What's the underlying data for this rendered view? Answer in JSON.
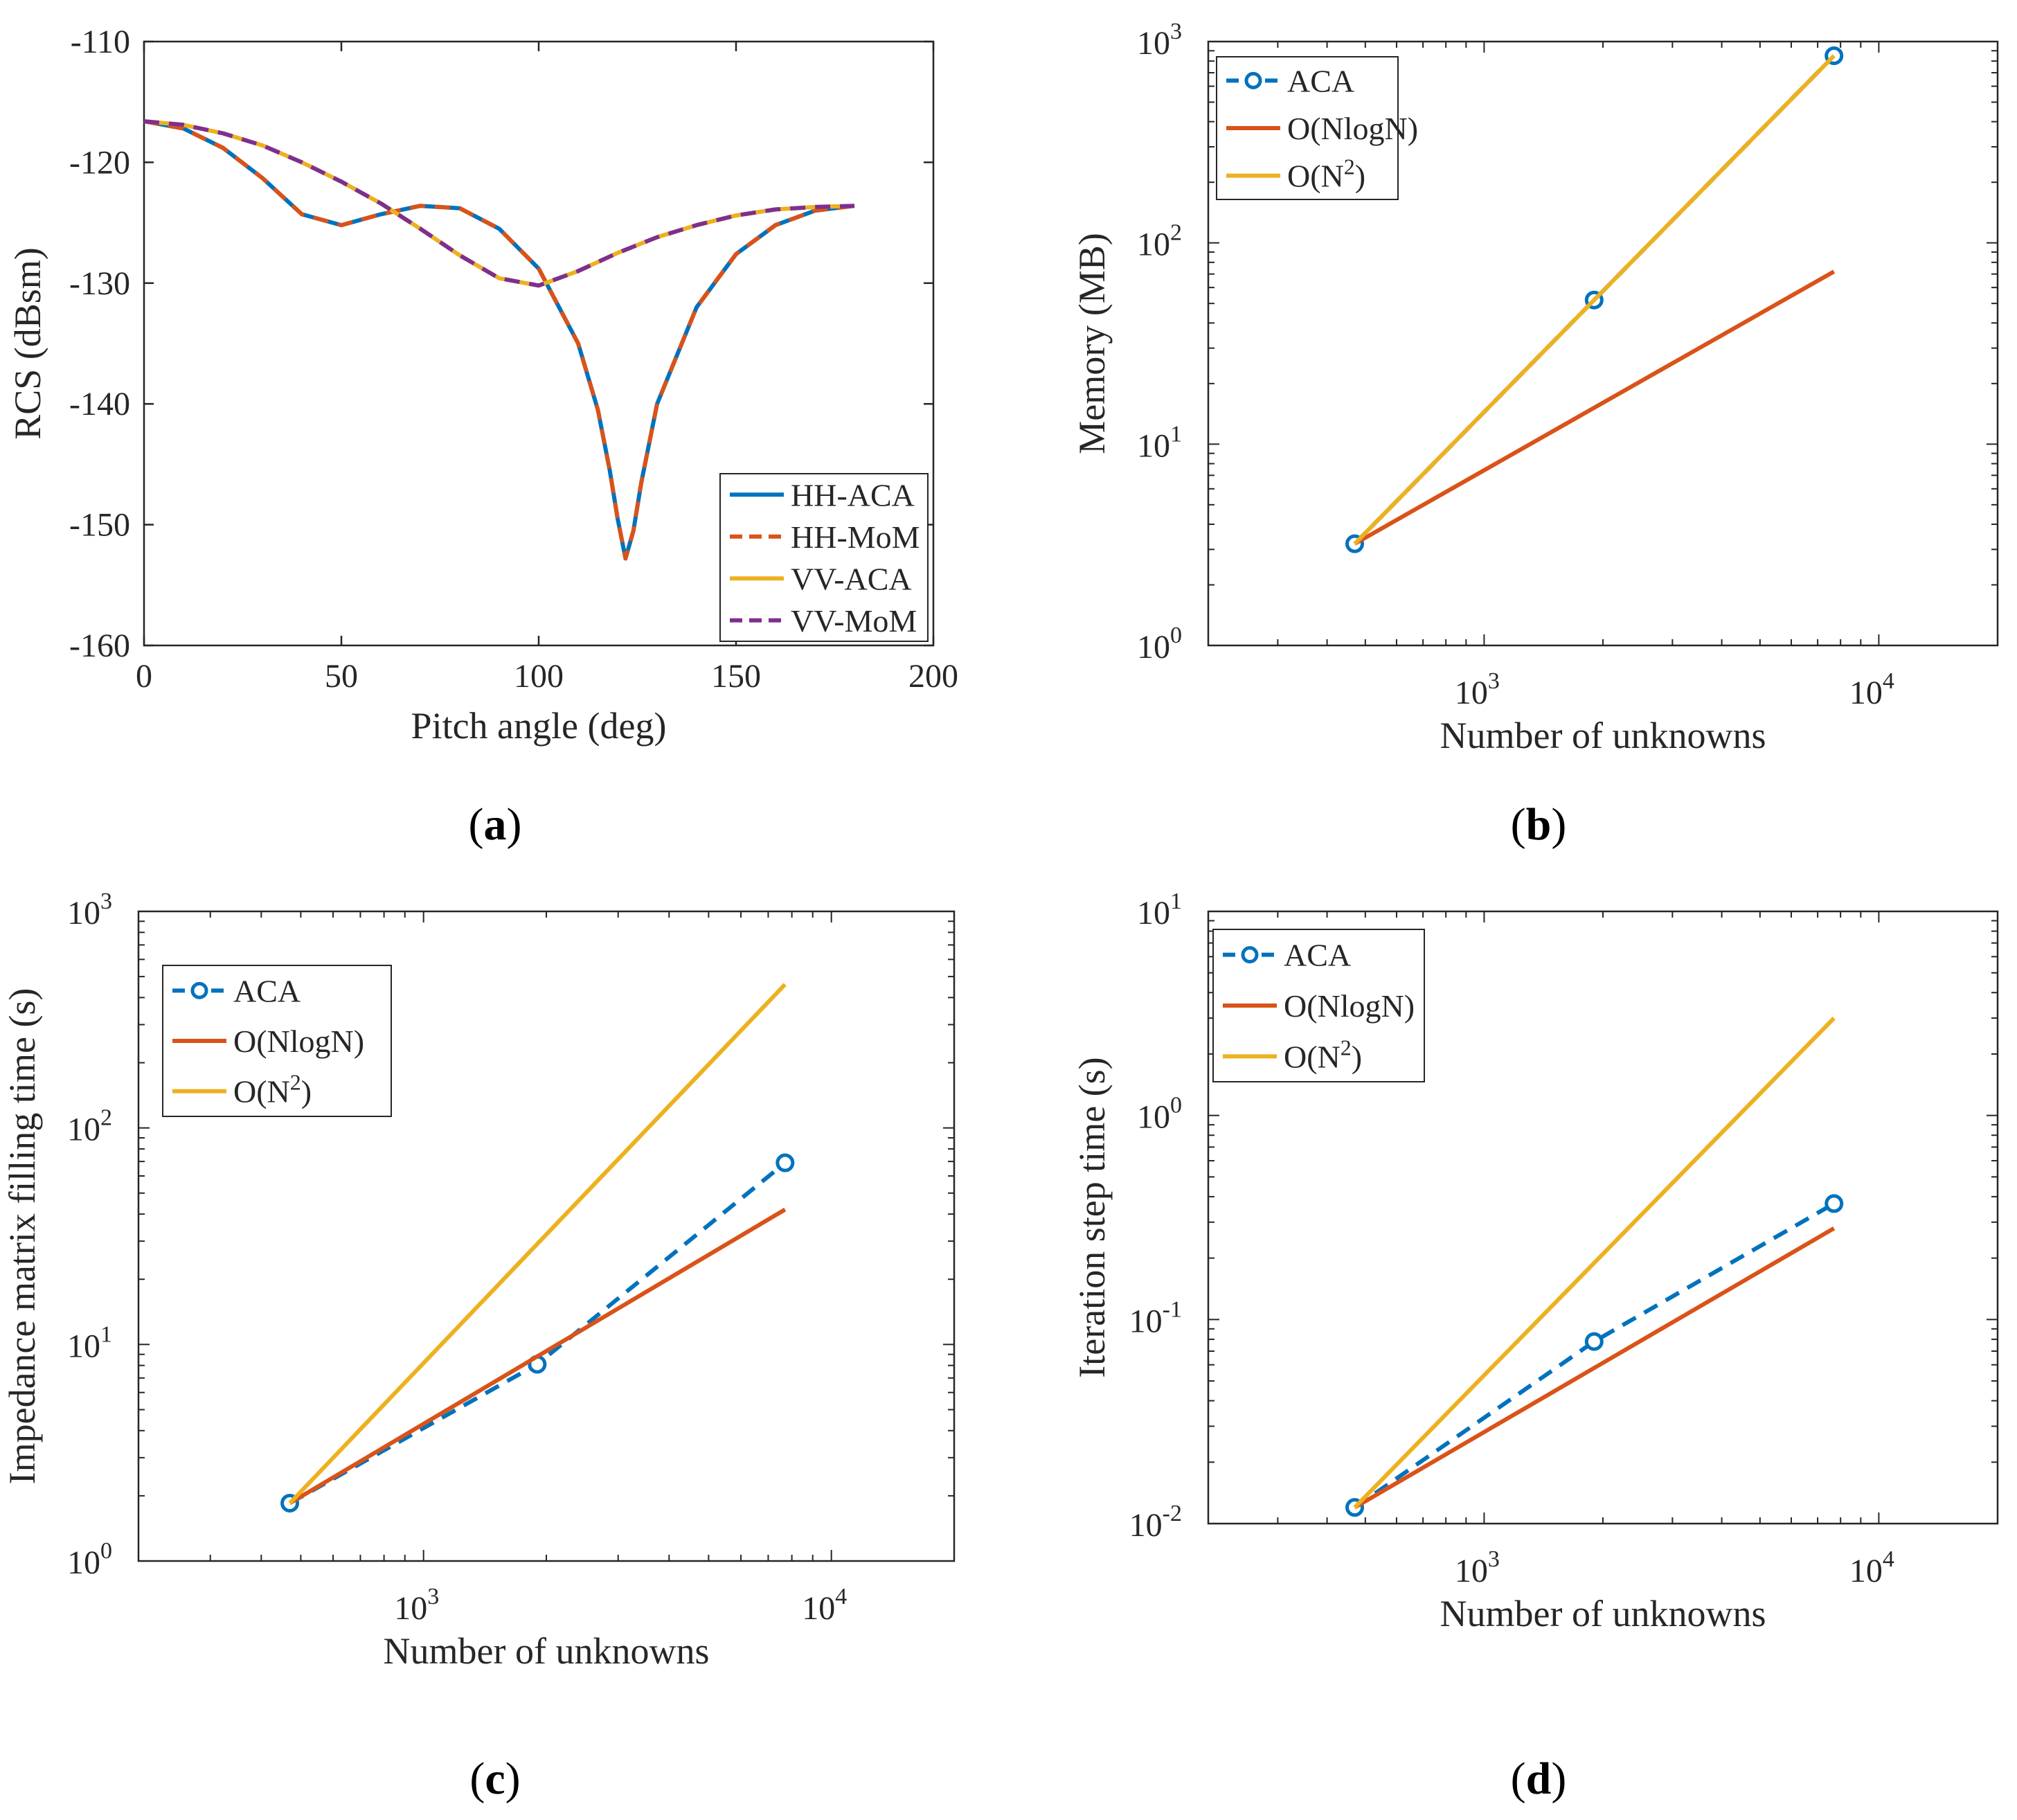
{
  "colors": {
    "blue": "#0072BD",
    "orange": "#D95319",
    "yellow": "#EDB120",
    "purple": "#7E2F8E",
    "axis": "#262626"
  },
  "panels": [
    {
      "label_open": "(",
      "label_letter": "a",
      "label_close": ")"
    },
    {
      "label_open": "(",
      "label_letter": "b",
      "label_close": ")"
    },
    {
      "label_open": "(",
      "label_letter": "c",
      "label_close": ")"
    },
    {
      "label_open": "(",
      "label_letter": "d",
      "label_close": ")"
    }
  ],
  "chart_data": [
    {
      "type": "line",
      "xlabel": "Pitch angle (deg)",
      "ylabel": "RCS (dBsm)",
      "xlim": [
        0,
        200
      ],
      "ylim": [
        -160,
        -110
      ],
      "xticks": [
        "0",
        "50",
        "100",
        "150",
        "200"
      ],
      "yticks": [
        "-160",
        "-150",
        "-140",
        "-130",
        "-120",
        "-110"
      ],
      "legend_position": "bottom-right",
      "grid": false,
      "series": [
        {
          "name": "HH-ACA",
          "style": "solid",
          "color": "blue",
          "x": [
            0,
            10,
            20,
            30,
            40,
            50,
            60,
            70,
            80,
            90,
            100,
            110,
            115,
            118,
            120,
            122,
            124,
            126,
            130,
            140,
            150,
            160,
            170,
            180
          ],
          "y": [
            -116.6,
            -117.2,
            -118.8,
            -121.3,
            -124.3,
            -125.2,
            -124.3,
            -123.6,
            -123.8,
            -125.5,
            -128.8,
            -135.0,
            -140.5,
            -145.5,
            -149.5,
            -152.8,
            -150.5,
            -146.5,
            -140.0,
            -132.0,
            -127.6,
            -125.2,
            -124.0,
            -123.6
          ]
        },
        {
          "name": "HH-MoM",
          "style": "dashed",
          "color": "orange",
          "x": [
            0,
            10,
            20,
            30,
            40,
            50,
            60,
            70,
            80,
            90,
            100,
            110,
            115,
            118,
            120,
            122,
            124,
            126,
            130,
            140,
            150,
            160,
            170,
            180
          ],
          "y": [
            -116.6,
            -117.2,
            -118.8,
            -121.3,
            -124.3,
            -125.2,
            -124.3,
            -123.6,
            -123.8,
            -125.5,
            -128.8,
            -135.0,
            -140.5,
            -145.5,
            -149.5,
            -152.8,
            -150.5,
            -146.5,
            -140.0,
            -132.0,
            -127.6,
            -125.2,
            -124.0,
            -123.6
          ]
        },
        {
          "name": "VV-ACA",
          "style": "solid",
          "color": "yellow",
          "x": [
            0,
            10,
            20,
            30,
            40,
            50,
            60,
            70,
            80,
            90,
            100,
            110,
            120,
            130,
            140,
            150,
            160,
            170,
            180
          ],
          "y": [
            -116.6,
            -116.9,
            -117.6,
            -118.6,
            -120.0,
            -121.6,
            -123.4,
            -125.5,
            -127.7,
            -129.6,
            -130.2,
            -129.0,
            -127.5,
            -126.2,
            -125.2,
            -124.4,
            -123.9,
            -123.7,
            -123.6
          ]
        },
        {
          "name": "VV-MoM",
          "style": "dashed",
          "color": "purple",
          "x": [
            0,
            10,
            20,
            30,
            40,
            50,
            60,
            70,
            80,
            90,
            100,
            110,
            120,
            130,
            140,
            150,
            160,
            170,
            180
          ],
          "y": [
            -116.6,
            -116.9,
            -117.6,
            -118.6,
            -120.0,
            -121.6,
            -123.4,
            -125.5,
            -127.7,
            -129.6,
            -130.2,
            -129.0,
            -127.5,
            -126.2,
            -125.2,
            -124.4,
            -123.9,
            -123.7,
            -123.6
          ]
        }
      ]
    },
    {
      "type": "line",
      "xlabel": "Number of unknowns",
      "ylabel": "Memory (MB)",
      "xscale": "log",
      "yscale": "log",
      "xlim": [
        200,
        20000
      ],
      "ylim": [
        1,
        1000
      ],
      "xticks": [
        {
          "base": "10",
          "exp": "3",
          "value": 1000
        },
        {
          "base": "10",
          "exp": "4",
          "value": 10000
        }
      ],
      "yticks": [
        {
          "base": "10",
          "exp": "0",
          "value": 1
        },
        {
          "base": "10",
          "exp": "1",
          "value": 10
        },
        {
          "base": "10",
          "exp": "2",
          "value": 100
        },
        {
          "base": "10",
          "exp": "3",
          "value": 1000
        }
      ],
      "legend_position": "top-left",
      "grid": false,
      "series": [
        {
          "name": "ACA",
          "style": "dashed-marker",
          "color": "blue",
          "x": [
            470,
            1900,
            7700
          ],
          "y": [
            3.2,
            52,
            850
          ]
        },
        {
          "name_main": "O(NlogN)",
          "style": "solid",
          "color": "orange",
          "x": [
            470,
            7700
          ],
          "y": [
            3.2,
            72
          ]
        },
        {
          "name_main": "O(N",
          "name_sup": "2",
          "name_end": ")",
          "style": "solid",
          "color": "yellow",
          "x": [
            470,
            7700
          ],
          "y": [
            3.2,
            850
          ]
        }
      ]
    },
    {
      "type": "line",
      "xlabel": "Number of unknowns",
      "ylabel": "Impedance matrix filling time (s)",
      "xscale": "log",
      "yscale": "log",
      "xlim": [
        200,
        20000
      ],
      "ylim": [
        1,
        1000
      ],
      "xticks": [
        {
          "base": "10",
          "exp": "3",
          "value": 1000
        },
        {
          "base": "10",
          "exp": "4",
          "value": 10000
        }
      ],
      "yticks": [
        {
          "base": "10",
          "exp": "0",
          "value": 1
        },
        {
          "base": "10",
          "exp": "1",
          "value": 10
        },
        {
          "base": "10",
          "exp": "2",
          "value": 100
        },
        {
          "base": "10",
          "exp": "3",
          "value": 1000
        }
      ],
      "legend_position": "top-left",
      "grid": false,
      "series": [
        {
          "name": "ACA",
          "style": "dashed-marker",
          "color": "blue",
          "x": [
            470,
            1900,
            7700
          ],
          "y": [
            1.85,
            8.1,
            69
          ]
        },
        {
          "name_main": "O(NlogN)",
          "style": "solid",
          "color": "orange",
          "x": [
            470,
            7700
          ],
          "y": [
            1.85,
            42
          ]
        },
        {
          "name_main": "O(N",
          "name_sup": "2",
          "name_end": ")",
          "style": "solid",
          "color": "yellow",
          "x": [
            470,
            7700
          ],
          "y": [
            1.85,
            460
          ]
        }
      ]
    },
    {
      "type": "line",
      "xlabel": "Number of unknowns",
      "ylabel": "Iteration step time (s)",
      "xscale": "log",
      "yscale": "log",
      "xlim": [
        200,
        20000
      ],
      "ylim": [
        0.01,
        10
      ],
      "xticks": [
        {
          "base": "10",
          "exp": "3",
          "value": 1000
        },
        {
          "base": "10",
          "exp": "4",
          "value": 10000
        }
      ],
      "yticks": [
        {
          "base": "10",
          "exp": "-2",
          "value": 0.01
        },
        {
          "base": "10",
          "exp": "-1",
          "value": 0.1
        },
        {
          "base": "10",
          "exp": "0",
          "value": 1
        },
        {
          "base": "10",
          "exp": "1",
          "value": 10
        }
      ],
      "legend_position": "top-left",
      "grid": false,
      "series": [
        {
          "name": "ACA",
          "style": "dashed-marker",
          "color": "blue",
          "x": [
            470,
            1900,
            7700
          ],
          "y": [
            0.012,
            0.078,
            0.37
          ]
        },
        {
          "name_main": "O(NlogN)",
          "style": "solid",
          "color": "orange",
          "x": [
            470,
            7700
          ],
          "y": [
            0.012,
            0.28
          ]
        },
        {
          "name_main": "O(N",
          "name_sup": "2",
          "name_end": ")",
          "style": "solid",
          "color": "yellow",
          "x": [
            470,
            7700
          ],
          "y": [
            0.012,
            3.0
          ]
        }
      ]
    }
  ]
}
